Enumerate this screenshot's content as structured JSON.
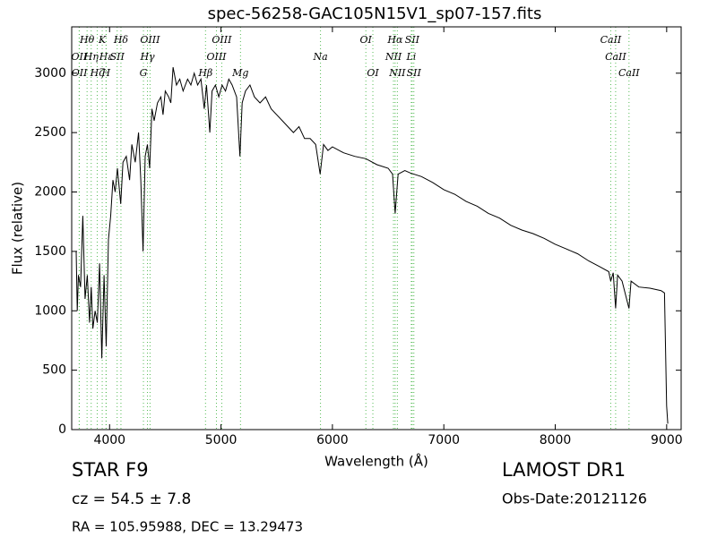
{
  "chart_data": {
    "type": "line",
    "title": "spec-56258-GAC105N15V1_sp07-157.fits",
    "x_label": "Wavelength (Å)",
    "y_label": "Flux (relative)",
    "xlim": [
      3660,
      9130
    ],
    "ylim": [
      0,
      3390
    ],
    "xticks": [
      4000,
      5000,
      6000,
      7000,
      8000,
      9000
    ],
    "yticks": [
      0,
      500,
      1000,
      1500,
      2000,
      2500,
      3000
    ],
    "color": "#000000",
    "line_color": "#55bb55",
    "x": [
      3700,
      3710,
      3720,
      3740,
      3760,
      3780,
      3800,
      3820,
      3835,
      3850,
      3870,
      3890,
      3910,
      3930,
      3950,
      3970,
      3990,
      4010,
      4030,
      4050,
      4070,
      4100,
      4120,
      4150,
      4180,
      4200,
      4230,
      4260,
      4280,
      4300,
      4320,
      4340,
      4360,
      4380,
      4400,
      4430,
      4460,
      4480,
      4500,
      4530,
      4550,
      4570,
      4600,
      4630,
      4660,
      4700,
      4730,
      4760,
      4790,
      4820,
      4850,
      4870,
      4900,
      4920,
      4950,
      4980,
      5010,
      5040,
      5070,
      5100,
      5140,
      5170,
      5190,
      5220,
      5260,
      5300,
      5350,
      5400,
      5450,
      5500,
      5550,
      5600,
      5650,
      5700,
      5750,
      5800,
      5850,
      5890,
      5920,
      5960,
      6000,
      6100,
      6200,
      6300,
      6400,
      6500,
      6540,
      6563,
      6590,
      6650,
      6700,
      6800,
      6900,
      7000,
      7100,
      7200,
      7300,
      7400,
      7500,
      7600,
      7700,
      7800,
      7900,
      8000,
      8100,
      8200,
      8300,
      8400,
      8480,
      8498,
      8520,
      8542,
      8560,
      8600,
      8662,
      8680,
      8750,
      8850,
      8950,
      8980,
      9000,
      9010
    ],
    "values": [
      1500,
      1000,
      1300,
      1200,
      1800,
      1100,
      1300,
      900,
      1200,
      850,
      1000,
      900,
      1400,
      600,
      1300,
      700,
      1600,
      1800,
      2100,
      2000,
      2200,
      1900,
      2250,
      2300,
      2100,
      2400,
      2250,
      2500,
      2100,
      1500,
      2300,
      2400,
      2200,
      2700,
      2600,
      2750,
      2800,
      2650,
      2850,
      2800,
      2750,
      3050,
      2900,
      2950,
      2850,
      2950,
      2900,
      3000,
      2900,
      2950,
      2700,
      2900,
      2500,
      2850,
      2900,
      2800,
      2900,
      2850,
      2950,
      2900,
      2800,
      2300,
      2750,
      2850,
      2900,
      2800,
      2750,
      2800,
      2700,
      2650,
      2600,
      2550,
      2500,
      2550,
      2450,
      2450,
      2400,
      2150,
      2400,
      2350,
      2380,
      2330,
      2300,
      2280,
      2230,
      2200,
      2150,
      1820,
      2150,
      2180,
      2160,
      2130,
      2080,
      2020,
      1980,
      1920,
      1880,
      1820,
      1780,
      1720,
      1680,
      1650,
      1610,
      1560,
      1520,
      1480,
      1420,
      1370,
      1330,
      1250,
      1320,
      1020,
      1300,
      1250,
      1020,
      1250,
      1200,
      1190,
      1170,
      1150,
      200,
      50
    ],
    "lines": [
      {
        "label": "OII",
        "wavelength": 3727
      },
      {
        "label": "OII",
        "wavelength": 3729
      },
      {
        "label": "Hθ",
        "wavelength": 3798
      },
      {
        "label": "Hη",
        "wavelength": 3835
      },
      {
        "label": "Hζ",
        "wavelength": 3889
      },
      {
        "label": "K",
        "wavelength": 3934
      },
      {
        "label": "Hε",
        "wavelength": 3970
      },
      {
        "label": "H",
        "wavelength": 3968
      },
      {
        "label": "SII",
        "wavelength": 4068
      },
      {
        "label": "Hδ",
        "wavelength": 4102
      },
      {
        "label": "G",
        "wavelength": 4304
      },
      {
        "label": "Hγ",
        "wavelength": 4340
      },
      {
        "label": "OIII",
        "wavelength": 4363
      },
      {
        "label": "Hβ",
        "wavelength": 4861
      },
      {
        "label": "OIII",
        "wavelength": 4959
      },
      {
        "label": "OIII",
        "wavelength": 5007
      },
      {
        "label": "Mg",
        "wavelength": 5175
      },
      {
        "label": "Na",
        "wavelength": 5893
      },
      {
        "label": "OI",
        "wavelength": 6300
      },
      {
        "label": "OI",
        "wavelength": 6363
      },
      {
        "label": "NII",
        "wavelength": 6548
      },
      {
        "label": "Hα",
        "wavelength": 6563
      },
      {
        "label": "NII",
        "wavelength": 6583
      },
      {
        "label": "Li",
        "wavelength": 6708
      },
      {
        "label": "SII",
        "wavelength": 6716
      },
      {
        "label": "SII",
        "wavelength": 6731
      },
      {
        "label": "CaII",
        "wavelength": 8498
      },
      {
        "label": "CaII",
        "wavelength": 8542
      },
      {
        "label": "CaII",
        "wavelength": 8662
      }
    ],
    "object_class": "STAR   F9",
    "redshift": "cz = 54.5 ± 7.8",
    "coordinates": "RA = 105.95988, DEC = 13.29473",
    "survey": "LAMOST DR1",
    "obs_date": "Obs-Date:20121126"
  }
}
